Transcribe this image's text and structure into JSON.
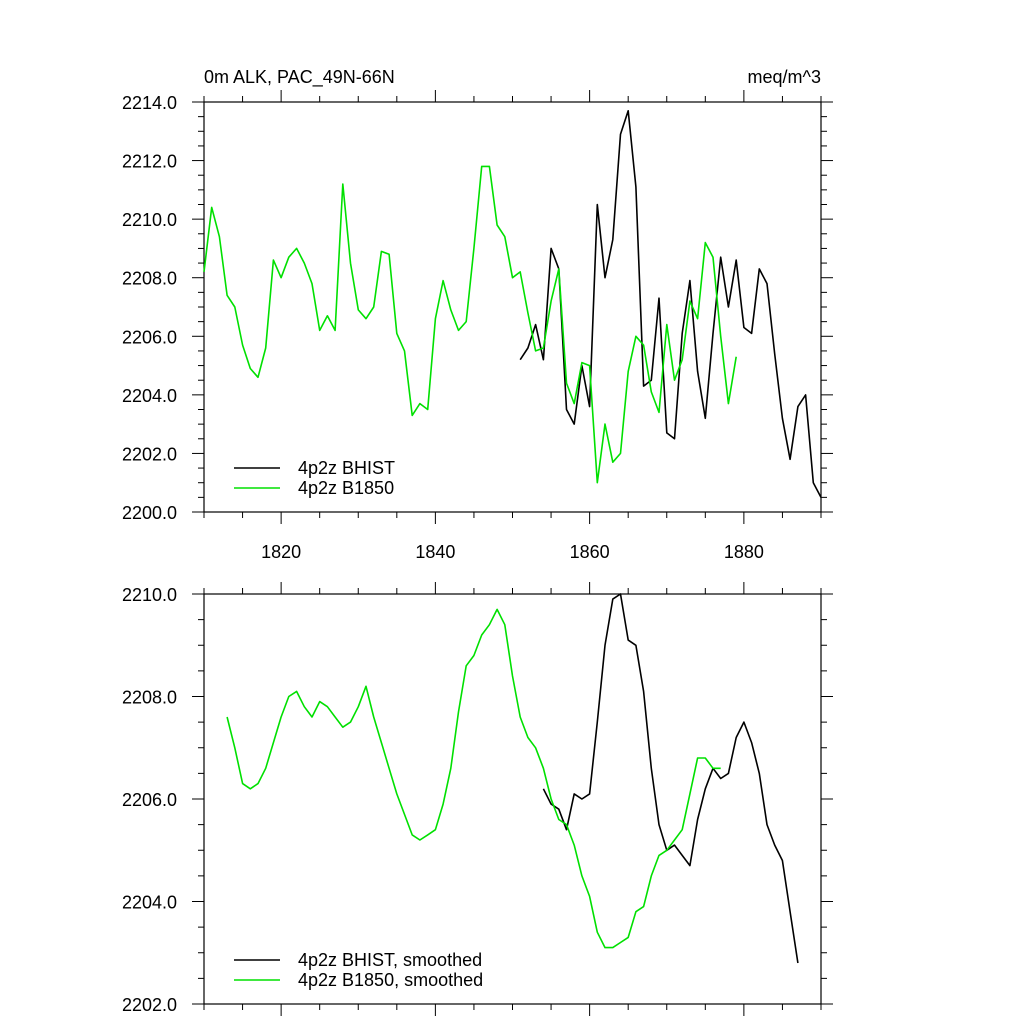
{
  "chart_data": [
    {
      "type": "line",
      "title_left": "0m ALK, PAC_49N-66N",
      "title_right": "meq/m^3",
      "xlim": [
        1810,
        1890
      ],
      "ylim": [
        2200,
        2214
      ],
      "x_ticks": [
        1820,
        1840,
        1860,
        1880
      ],
      "x_tick_labels": [
        "1820",
        "1840",
        "1860",
        "1880"
      ],
      "y_ticks": [
        2200,
        2202,
        2204,
        2206,
        2208,
        2210,
        2212,
        2214
      ],
      "y_tick_labels": [
        "2200.0",
        "2202.0",
        "2204.0",
        "2206.0",
        "2208.0",
        "2210.0",
        "2212.0",
        "2214.0"
      ],
      "legend_position": "bottom-left",
      "series": [
        {
          "name": "4p2z BHIST",
          "color": "#000000",
          "x": [
            1851,
            1852,
            1853,
            1854,
            1855,
            1856,
            1857,
            1858,
            1859,
            1860,
            1861,
            1862,
            1863,
            1864,
            1865,
            1866,
            1867,
            1868,
            1869,
            1870,
            1871,
            1872,
            1873,
            1874,
            1875,
            1876,
            1877,
            1878,
            1879,
            1880,
            1881,
            1882,
            1883,
            1884,
            1885,
            1886,
            1887,
            1888,
            1889,
            1890
          ],
          "y": [
            2205.2,
            2205.6,
            2206.4,
            2205.2,
            2209.0,
            2208.3,
            2203.5,
            2203.0,
            2205.0,
            2203.6,
            2210.5,
            2208.0,
            2209.3,
            2212.9,
            2213.7,
            2211.1,
            2204.3,
            2204.5,
            2207.3,
            2202.7,
            2202.5,
            2206.1,
            2207.9,
            2204.8,
            2203.2,
            2206.1,
            2208.7,
            2207.0,
            2208.6,
            2206.3,
            2206.1,
            2208.3,
            2207.8,
            2205.4,
            2203.2,
            2201.8,
            2203.6,
            2204.0,
            2201.0,
            2200.5
          ]
        },
        {
          "name": "4p2z B1850",
          "color": "#00e000",
          "x": [
            1810,
            1811,
            1812,
            1813,
            1814,
            1815,
            1816,
            1817,
            1818,
            1819,
            1820,
            1821,
            1822,
            1823,
            1824,
            1825,
            1826,
            1827,
            1828,
            1829,
            1830,
            1831,
            1832,
            1833,
            1834,
            1835,
            1836,
            1837,
            1838,
            1839,
            1840,
            1841,
            1842,
            1843,
            1844,
            1845,
            1846,
            1847,
            1848,
            1849,
            1850,
            1851,
            1852,
            1853,
            1854,
            1855,
            1856,
            1857,
            1858,
            1859,
            1860,
            1861,
            1862,
            1863,
            1864,
            1865,
            1866,
            1867,
            1868,
            1869,
            1870,
            1871,
            1872,
            1873,
            1874,
            1875,
            1876,
            1877,
            1878,
            1879
          ],
          "y": [
            2208.2,
            2210.4,
            2209.4,
            2207.4,
            2207.0,
            2205.7,
            2204.9,
            2204.6,
            2205.6,
            2208.6,
            2208.0,
            2208.7,
            2209.0,
            2208.5,
            2207.8,
            2206.2,
            2206.7,
            2206.2,
            2211.2,
            2208.5,
            2206.9,
            2206.6,
            2207.0,
            2208.9,
            2208.8,
            2206.1,
            2205.5,
            2203.3,
            2203.7,
            2203.5,
            2206.6,
            2207.9,
            2206.9,
            2206.2,
            2206.5,
            2209.0,
            2211.8,
            2211.8,
            2209.8,
            2209.4,
            2208.0,
            2208.2,
            2206.8,
            2205.5,
            2205.6,
            2207.2,
            2208.3,
            2204.4,
            2203.7,
            2205.1,
            2205.0,
            2201.0,
            2203.0,
            2201.7,
            2202.0,
            2204.8,
            2206.0,
            2205.7,
            2204.1,
            2203.4,
            2206.4,
            2204.5,
            2205.2,
            2207.2,
            2206.6,
            2209.2,
            2208.7,
            2206.0,
            2203.7,
            2205.3
          ]
        }
      ]
    },
    {
      "type": "line",
      "xlim": [
        1810,
        1890
      ],
      "ylim": [
        2202,
        2210
      ],
      "x_ticks": [
        1820,
        1840,
        1860,
        1880
      ],
      "y_ticks": [
        2202,
        2204,
        2206,
        2208,
        2210
      ],
      "y_tick_labels": [
        "2202.0",
        "2204.0",
        "2206.0",
        "2208.0",
        "2210.0"
      ],
      "legend_position": "bottom-left",
      "series": [
        {
          "name": "4p2z BHIST, smoothed",
          "color": "#000000",
          "x": [
            1854,
            1855,
            1856,
            1857,
            1858,
            1859,
            1860,
            1861,
            1862,
            1863,
            1864,
            1865,
            1866,
            1867,
            1868,
            1869,
            1870,
            1871,
            1872,
            1873,
            1874,
            1875,
            1876,
            1877,
            1878,
            1879,
            1880,
            1881,
            1882,
            1883,
            1884,
            1885,
            1886,
            1887
          ],
          "y": [
            2206.2,
            2205.9,
            2205.8,
            2205.4,
            2206.1,
            2206.0,
            2206.1,
            2207.5,
            2209.0,
            2209.9,
            2210.0,
            2209.1,
            2209.0,
            2208.1,
            2206.6,
            2205.5,
            2205.0,
            2205.1,
            2204.9,
            2204.7,
            2205.6,
            2206.2,
            2206.6,
            2206.4,
            2206.5,
            2207.2,
            2207.5,
            2207.1,
            2206.5,
            2205.5,
            2205.1,
            2204.8,
            2203.8,
            2202.8
          ]
        },
        {
          "name": "4p2z B1850, smoothed",
          "color": "#00e000",
          "x": [
            1813,
            1814,
            1815,
            1816,
            1817,
            1818,
            1819,
            1820,
            1821,
            1822,
            1823,
            1824,
            1825,
            1826,
            1827,
            1828,
            1829,
            1830,
            1831,
            1832,
            1833,
            1834,
            1835,
            1836,
            1837,
            1838,
            1839,
            1840,
            1841,
            1842,
            1843,
            1844,
            1845,
            1846,
            1847,
            1848,
            1849,
            1850,
            1851,
            1852,
            1853,
            1854,
            1855,
            1856,
            1857,
            1858,
            1859,
            1860,
            1861,
            1862,
            1863,
            1864,
            1865,
            1866,
            1867,
            1868,
            1869,
            1870,
            1871,
            1872,
            1873,
            1874,
            1875,
            1876,
            1877
          ],
          "y": [
            2207.6,
            2207.0,
            2206.3,
            2206.2,
            2206.3,
            2206.6,
            2207.1,
            2207.6,
            2208.0,
            2208.1,
            2207.8,
            2207.6,
            2207.9,
            2207.8,
            2207.6,
            2207.4,
            2207.5,
            2207.8,
            2208.2,
            2207.6,
            2207.1,
            2206.6,
            2206.1,
            2205.7,
            2205.3,
            2205.2,
            2205.3,
            2205.4,
            2205.9,
            2206.6,
            2207.7,
            2208.6,
            2208.8,
            2209.2,
            2209.4,
            2209.7,
            2209.4,
            2208.4,
            2207.6,
            2207.2,
            2207.0,
            2206.6,
            2206.0,
            2205.6,
            2205.5,
            2205.1,
            2204.5,
            2204.1,
            2203.4,
            2203.1,
            2203.1,
            2203.2,
            2203.3,
            2203.8,
            2203.9,
            2204.5,
            2204.9,
            2205.0,
            2205.2,
            2205.4,
            2206.1,
            2206.8,
            2206.8,
            2206.6,
            2206.6
          ]
        }
      ]
    }
  ]
}
